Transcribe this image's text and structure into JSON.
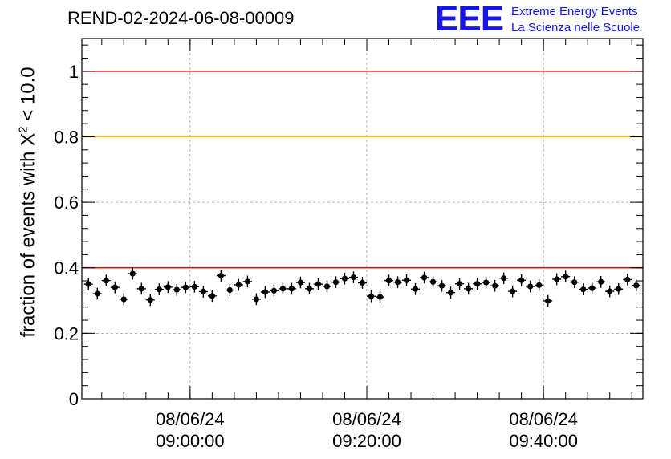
{
  "header": {
    "title": "REND-02-2024-06-08-00009"
  },
  "logo": {
    "mark": "EEE",
    "line1": "Extreme Energy Events",
    "line2": "La Scienza nelle Scuole"
  },
  "axis": {
    "ylabel_prefix": "fraction of events with X",
    "ylabel_sup": "2",
    "ylabel_suffix": " < 10.0"
  },
  "colors": {
    "red_line": "#e8150f",
    "yellow_line": "#ffc800",
    "points": "#000000",
    "grid": "#9a9a9a"
  },
  "chart_data": {
    "type": "scatter",
    "title": "REND-02-2024-06-08-00009",
    "xlabel": "",
    "ylabel": "fraction of events with X^2 < 10.0",
    "x_unit": "minutes after 08/06/24 08:47:45",
    "xlim": [
      0,
      63.5
    ],
    "ylim": [
      0,
      1.1
    ],
    "grid": true,
    "y_ticks": [
      {
        "value": 0,
        "label": "0"
      },
      {
        "value": 0.2,
        "label": "0.2"
      },
      {
        "value": 0.4,
        "label": "0.4"
      },
      {
        "value": 0.6,
        "label": "0.6"
      },
      {
        "value": 0.8,
        "label": "0.8"
      },
      {
        "value": 1.0,
        "label": "1"
      }
    ],
    "x_ticks": [
      {
        "value": 12.25,
        "date": "08/06/24",
        "time": "09:00:00"
      },
      {
        "value": 32.25,
        "date": "08/06/24",
        "time": "09:20:00"
      },
      {
        "value": 52.25,
        "date": "08/06/24",
        "time": "09:40:00"
      }
    ],
    "reference_lines": [
      {
        "y": 1.0,
        "color": "#e8150f"
      },
      {
        "y": 0.8,
        "color": "#ffc800"
      },
      {
        "y": 0.4,
        "color": "#e8150f"
      }
    ],
    "x_error": 0.5,
    "y_error": 0.018,
    "series": [
      {
        "x": [
          0.75,
          1.75,
          2.75,
          3.75,
          4.75,
          5.75,
          6.75,
          7.75,
          8.75,
          9.75,
          10.75,
          11.75,
          12.75,
          13.75,
          14.75,
          15.75,
          16.75,
          17.75,
          18.75,
          19.75,
          20.75,
          21.75,
          22.75,
          23.75,
          24.75,
          25.75,
          26.75,
          27.75,
          28.75,
          29.75,
          30.75,
          31.75,
          32.75,
          33.75,
          34.75,
          35.75,
          36.75,
          37.75,
          38.75,
          39.75,
          40.75,
          41.75,
          42.75,
          43.75,
          44.75,
          45.75,
          46.75,
          47.75,
          48.75,
          49.75,
          50.75,
          51.75,
          52.75,
          53.75,
          54.75,
          55.75,
          56.75,
          57.75,
          58.75,
          59.75,
          60.75,
          61.75,
          62.75
        ],
        "y": [
          0.35,
          0.321,
          0.361,
          0.34,
          0.304,
          0.382,
          0.336,
          0.302,
          0.334,
          0.341,
          0.333,
          0.34,
          0.342,
          0.327,
          0.314,
          0.376,
          0.332,
          0.348,
          0.358,
          0.304,
          0.326,
          0.33,
          0.336,
          0.336,
          0.355,
          0.336,
          0.35,
          0.343,
          0.356,
          0.367,
          0.371,
          0.354,
          0.313,
          0.311,
          0.361,
          0.356,
          0.362,
          0.335,
          0.37,
          0.357,
          0.345,
          0.324,
          0.351,
          0.336,
          0.351,
          0.355,
          0.345,
          0.368,
          0.328,
          0.362,
          0.343,
          0.347,
          0.299,
          0.365,
          0.373,
          0.356,
          0.334,
          0.338,
          0.357,
          0.328,
          0.335,
          0.364,
          0.346
        ]
      }
    ]
  }
}
